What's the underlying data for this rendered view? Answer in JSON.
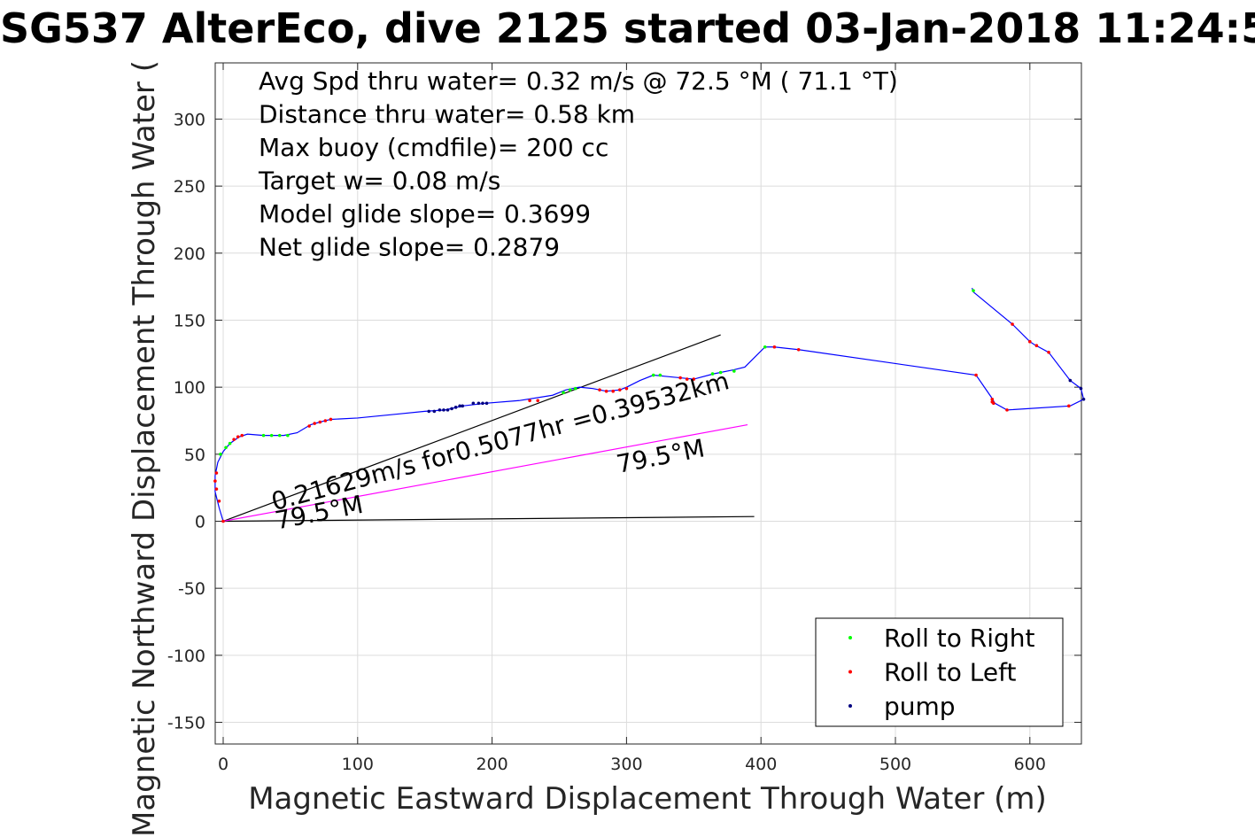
{
  "chart_data": {
    "type": "scatter",
    "title": "SG537 AlterEco, dive 2125 started 03-Jan-2018 11:24:5",
    "xlabel": "Magnetic Eastward Displacement Through Water (m)",
    "ylabel": "Magnetic Northward Displacement Through Water (",
    "xlim": [
      -5,
      640
    ],
    "ylim": [
      -165,
      342
    ],
    "xticks": [
      0,
      100,
      200,
      300,
      400,
      500,
      600
    ],
    "xtick_labels": [
      "0",
      "100",
      "200",
      "300",
      "400",
      "500",
      "600"
    ],
    "yticks": [
      -150,
      -100,
      -50,
      0,
      50,
      100,
      150,
      200,
      250,
      300
    ],
    "ytick_labels": [
      "-150",
      "-100",
      "-50",
      "0",
      "50",
      "100",
      "150",
      "200",
      "250",
      "300"
    ],
    "grid": true,
    "legend_position": "bottom-right",
    "annotations": [
      "Avg Spd thru water=  0.32 m/s @  72.5 °M ( 71.1 °T)",
      "Distance thru water=  0.58 km",
      "Max buoy (cmdfile)= 200 cc",
      "Target w= 0.08 m/s",
      "Model glide slope= 0.3699",
      "Net glide slope= 0.2879"
    ],
    "vector_labels": [
      {
        "text": "0.21629m/s for0.5077hr =0.39532km",
        "x": 38,
        "y": 8,
        "angle": 15
      },
      {
        "text": "79.5°M",
        "x": 40,
        "y": -6,
        "angle": 11
      },
      {
        "text": "79.5°M",
        "x": 294,
        "y": 36,
        "angle": 11
      }
    ],
    "lines": [
      {
        "name": "heading-line-upper",
        "color": "#000000",
        "points": [
          [
            0,
            0
          ],
          [
            370,
            139
          ]
        ]
      },
      {
        "name": "heading-line-lower",
        "color": "#000000",
        "points": [
          [
            0,
            0
          ],
          [
            395,
            3.5
          ]
        ]
      },
      {
        "name": "current-vector",
        "color": "#ff00ff",
        "points": [
          [
            0,
            0
          ],
          [
            390,
            72
          ]
        ]
      }
    ],
    "track": {
      "color": "#0000ff",
      "points": [
        [
          0,
          0
        ],
        [
          -3,
          10
        ],
        [
          -6,
          22
        ],
        [
          -6,
          34
        ],
        [
          -4,
          44
        ],
        [
          0,
          52
        ],
        [
          5,
          58
        ],
        [
          12,
          63
        ],
        [
          18,
          65
        ],
        [
          30,
          64
        ],
        [
          45,
          64
        ],
        [
          55,
          66
        ],
        [
          65,
          72
        ],
        [
          72,
          74
        ],
        [
          80,
          76
        ],
        [
          100,
          77
        ],
        [
          130,
          80
        ],
        [
          150,
          82
        ],
        [
          165,
          83
        ],
        [
          178,
          86
        ],
        [
          195,
          88
        ],
        [
          220,
          90
        ],
        [
          245,
          94
        ],
        [
          255,
          98
        ],
        [
          265,
          100
        ],
        [
          275,
          99
        ],
        [
          285,
          97
        ],
        [
          295,
          98
        ],
        [
          300,
          100
        ],
        [
          310,
          105
        ],
        [
          320,
          109
        ],
        [
          330,
          108
        ],
        [
          340,
          107
        ],
        [
          350,
          106
        ],
        [
          365,
          110
        ],
        [
          380,
          113
        ],
        [
          388,
          115
        ],
        [
          403,
          130
        ],
        [
          410,
          130
        ],
        [
          428,
          128
        ],
        [
          560,
          109
        ],
        [
          571,
          93
        ],
        [
          574,
          88
        ],
        [
          583,
          83
        ],
        [
          630,
          86
        ],
        [
          640,
          91
        ],
        [
          638,
          99
        ],
        [
          630,
          105
        ],
        [
          614,
          126
        ],
        [
          603,
          132
        ],
        [
          600,
          134
        ],
        [
          587,
          147
        ],
        [
          558,
          171
        ],
        [
          557,
          174
        ]
      ]
    },
    "series": [
      {
        "name": "Roll to Right",
        "color": "#00ff00",
        "points": [
          [
            -2,
            50
          ],
          [
            2,
            55
          ],
          [
            5,
            58
          ],
          [
            30,
            64
          ],
          [
            36,
            64
          ],
          [
            42,
            64
          ],
          [
            48,
            64
          ],
          [
            253,
            96
          ],
          [
            258,
            98
          ],
          [
            262,
            99
          ],
          [
            320,
            109
          ],
          [
            325,
            109
          ],
          [
            364,
            110
          ],
          [
            370,
            111
          ],
          [
            380,
            112
          ],
          [
            403,
            130
          ],
          [
            558,
            172
          ]
        ]
      },
      {
        "name": "Roll to Left",
        "color": "#ff0000",
        "points": [
          [
            -5,
            36
          ],
          [
            -6,
            30
          ],
          [
            -5,
            24
          ],
          [
            -3,
            15
          ],
          [
            0,
            0
          ],
          [
            8,
            61
          ],
          [
            11,
            63
          ],
          [
            14,
            64
          ],
          [
            64,
            71
          ],
          [
            68,
            73
          ],
          [
            72,
            74
          ],
          [
            76,
            75
          ],
          [
            80,
            76
          ],
          [
            228,
            90
          ],
          [
            234,
            90
          ],
          [
            280,
            98
          ],
          [
            285,
            97
          ],
          [
            290,
            97
          ],
          [
            295,
            98
          ],
          [
            300,
            99
          ],
          [
            340,
            107
          ],
          [
            345,
            106
          ],
          [
            350,
            106
          ],
          [
            410,
            130
          ],
          [
            428,
            128
          ],
          [
            560,
            109
          ],
          [
            572,
            91
          ],
          [
            572,
            89
          ],
          [
            573,
            88
          ],
          [
            583,
            83
          ],
          [
            629,
            86
          ],
          [
            600,
            134
          ],
          [
            605,
            131
          ],
          [
            614,
            126
          ],
          [
            587,
            147
          ]
        ]
      },
      {
        "name": "pump",
        "color": "#000080",
        "points": [
          [
            153,
            82
          ],
          [
            157,
            82
          ],
          [
            161,
            83
          ],
          [
            164,
            83
          ],
          [
            167,
            83
          ],
          [
            170,
            84
          ],
          [
            173,
            85
          ],
          [
            176,
            86
          ],
          [
            178,
            86
          ],
          [
            186,
            88
          ],
          [
            190,
            88
          ],
          [
            193,
            88
          ],
          [
            196,
            88
          ],
          [
            630,
            105
          ],
          [
            638,
            99
          ],
          [
            640,
            91
          ]
        ]
      }
    ]
  }
}
